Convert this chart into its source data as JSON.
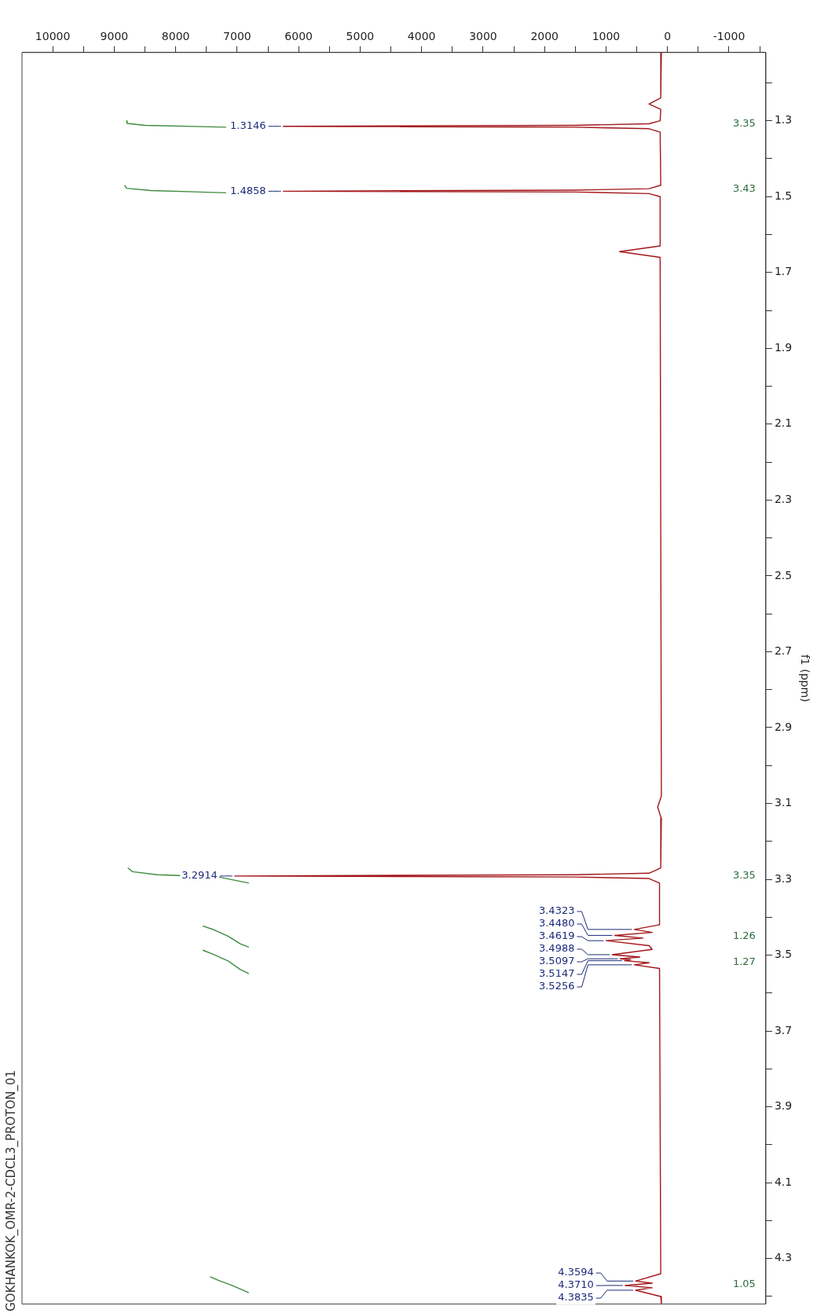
{
  "chart_data": {
    "type": "line",
    "orientation": "horizontal",
    "title": "GOKHANKOK_OMR-2-CDCL3_PROTON_01",
    "ylabel": "f1 (ppm)",
    "ylim": [
      4.42,
      1.12
    ],
    "yticks": [
      {
        "value": 4.4,
        "label": null
      },
      4.3,
      {
        "value": 4.2,
        "label": null
      },
      4.1,
      {
        "value": 4.0,
        "label": null
      },
      3.9,
      {
        "value": 3.8,
        "label": null
      },
      3.7,
      {
        "value": 3.6,
        "label": null
      },
      3.5,
      {
        "value": 3.4,
        "label": null
      },
      3.3,
      {
        "value": 3.2,
        "label": null
      },
      3.1,
      {
        "value": 3.0,
        "label": null
      },
      2.9,
      {
        "value": 2.8,
        "label": null
      },
      2.7,
      {
        "value": 2.6,
        "label": null
      },
      2.5,
      {
        "value": 2.4,
        "label": null
      },
      2.3,
      {
        "value": 2.2,
        "label": null
      },
      2.1,
      {
        "value": 2.0,
        "label": null
      },
      1.9,
      {
        "value": 1.8,
        "label": null
      },
      1.7,
      {
        "value": 1.6,
        "label": null
      },
      1.5,
      {
        "value": 1.4,
        "label": null
      },
      1.3,
      {
        "value": 1.2,
        "label": null
      }
    ],
    "xlim": [
      10500,
      -1600
    ],
    "xticks": [
      {
        "value": -1500,
        "label": null
      },
      -1000,
      {
        "value": -500,
        "label": null
      },
      0,
      {
        "value": 500,
        "label": null
      },
      1000,
      {
        "value": 1500,
        "label": null
      },
      2000,
      {
        "value": 2500,
        "label": null
      },
      3000,
      {
        "value": 3500,
        "label": null
      },
      4000,
      {
        "value": 4500,
        "label": null
      },
      5000,
      {
        "value": 5500,
        "label": null
      },
      6000,
      {
        "value": 6500,
        "label": null
      },
      7000,
      {
        "value": 7500,
        "label": null
      },
      8000,
      {
        "value": 8500,
        "label": null
      },
      9000,
      {
        "value": 9500,
        "label": null
      },
      10000
    ],
    "grid": false,
    "legend": false,
    "marker": "none",
    "line_style": "solid",
    "series": [
      {
        "color": "#a3161a",
        "x": [
          1.12,
          1.24,
          1.256,
          1.27,
          1.3,
          1.308,
          1.312,
          1.3146,
          1.317,
          1.321,
          1.33,
          1.47,
          1.479,
          1.483,
          1.4858,
          1.488,
          1.492,
          1.5,
          1.63,
          1.645,
          1.66,
          3.08,
          3.11,
          3.14,
          3.27,
          3.284,
          3.288,
          3.2914,
          3.294,
          3.298,
          3.31,
          3.42,
          3.4323,
          3.44,
          3.448,
          3.455,
          3.4619,
          3.475,
          3.485,
          3.4988,
          3.505,
          3.5097,
          3.512,
          3.5147,
          3.52,
          3.5256,
          3.535,
          4.34,
          4.3594,
          4.365,
          4.371,
          4.377,
          4.3835,
          4.4,
          4.42
        ],
        "values": [
          100,
          110,
          300,
          110,
          120,
          300,
          1500,
          6250,
          1500,
          300,
          120,
          110,
          300,
          1500,
          6250,
          1500,
          300,
          120,
          120,
          780,
          120,
          100,
          160,
          100,
          110,
          300,
          1500,
          7040,
          1500,
          300,
          130,
          130,
          540,
          250,
          860,
          400,
          1000,
          300,
          250,
          900,
          450,
          770,
          600,
          700,
          300,
          540,
          130,
          110,
          520,
          250,
          690,
          250,
          520,
          110,
          100
        ]
      },
      {
        "color": "#3d8b3d",
        "x": [
          1.3,
          1.307,
          1.312,
          1.317
        ],
        "values": [
          8800,
          8790,
          8500,
          7180
        ]
      },
      {
        "color": "#3d8b3d",
        "x": [
          1.47,
          1.478,
          1.484,
          1.49
        ],
        "values": [
          8830,
          8800,
          8400,
          7180
        ]
      },
      {
        "color": "#3d8b3d",
        "x": [
          3.27,
          3.28,
          3.288,
          3.294,
          3.31
        ],
        "values": [
          8780,
          8700,
          8300,
          7300,
          6810
        ]
      },
      {
        "color": "#3d8b3d",
        "x": [
          3.423,
          3.432,
          3.45,
          3.47,
          3.479
        ],
        "values": [
          7560,
          7400,
          7150,
          6950,
          6810
        ]
      },
      {
        "color": "#3d8b3d",
        "x": [
          3.487,
          3.497,
          3.515,
          3.538,
          3.549
        ],
        "values": [
          7560,
          7400,
          7150,
          6950,
          6810
        ]
      },
      {
        "color": "#3d8b3d",
        "x": [
          4.348,
          4.358,
          4.37,
          4.384,
          4.39
        ],
        "values": [
          7440,
          7300,
          7100,
          6900,
          6810
        ]
      }
    ],
    "annotations": [
      {
        "text": "1.3146",
        "x": 6250,
        "y": 1.3146
      },
      {
        "text": "1.4858",
        "x": 6250,
        "y": 1.4858
      },
      {
        "text": "3.2914",
        "x": 7040,
        "y": 3.2914
      },
      {
        "text": "3.4323",
        "x": 540,
        "y": 3.4323
      },
      {
        "text": "3.4480",
        "x": 860,
        "y": 3.448
      },
      {
        "text": "3.4619",
        "x": 1000,
        "y": 3.4619
      },
      {
        "text": "3.4988",
        "x": 900,
        "y": 3.4988
      },
      {
        "text": "3.5097",
        "x": 770,
        "y": 3.5097
      },
      {
        "text": "3.5147",
        "x": 700,
        "y": 3.5147
      },
      {
        "text": "3.5256",
        "x": 540,
        "y": 3.5256
      },
      {
        "text": "4.3594",
        "x": 520,
        "y": 4.3594
      },
      {
        "text": "4.3710",
        "x": 690,
        "y": 4.371
      },
      {
        "text": "4.3835",
        "x": 520,
        "y": 4.3835
      },
      "3.35",
      "3.43",
      "3.35",
      "1.26",
      "1.27",
      "1.05"
    ]
  }
}
